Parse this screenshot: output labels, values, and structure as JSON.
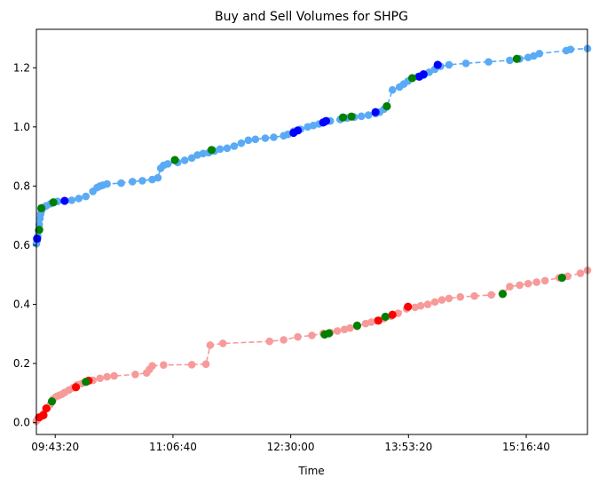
{
  "chart_data": {
    "type": "scatter",
    "title": "Buy and Sell Volumes for SHPG",
    "xlabel": "Time",
    "ylabel": "",
    "x_ticks": [
      "09:43:20",
      "11:06:40",
      "12:30:00",
      "13:53:20",
      "15:16:40"
    ],
    "y_ticks": [
      "0.0",
      "0.2",
      "0.4",
      "0.6",
      "0.8",
      "1.0",
      "1.2"
    ],
    "xlim": [
      "09:30:00",
      "16:00:00"
    ],
    "ylim": [
      -0.04,
      1.33
    ],
    "grid": false,
    "colors": {
      "buy_line": "#5aabf5",
      "sell_line": "#f79a9a",
      "buy_highlight": "#0000ff",
      "sell_highlight": "#ff0000",
      "marker_green": "#008000"
    },
    "series": [
      {
        "line_color": "#5aabf5",
        "points": [
          [
            "09:30:00",
            0.605
          ],
          [
            "09:30:30",
            0.615
          ],
          [
            "09:31:00",
            0.63
          ],
          [
            "09:31:30",
            0.648
          ],
          [
            "09:32:00",
            0.67
          ],
          [
            "09:32:30",
            0.69
          ],
          [
            "09:33:00",
            0.705
          ],
          [
            "09:33:30",
            0.715
          ],
          [
            "09:34:00",
            0.722
          ],
          [
            "09:35:00",
            0.728
          ],
          [
            "09:37:00",
            0.733
          ],
          [
            "09:40:00",
            0.74
          ],
          [
            "09:42:00",
            0.744
          ],
          [
            "09:45:00",
            0.748
          ],
          [
            "09:50:00",
            0.75
          ],
          [
            "09:55:00",
            0.752
          ],
          [
            "10:00:00",
            0.758
          ],
          [
            "10:05:00",
            0.765
          ],
          [
            "10:10:00",
            0.782
          ],
          [
            "10:13:00",
            0.795
          ],
          [
            "10:15:00",
            0.8
          ],
          [
            "10:17:00",
            0.803
          ],
          [
            "10:20:00",
            0.807
          ],
          [
            "10:30:00",
            0.81
          ],
          [
            "10:38:00",
            0.815
          ],
          [
            "10:45:00",
            0.818
          ],
          [
            "10:52:00",
            0.822
          ],
          [
            "10:56:00",
            0.828
          ],
          [
            "10:58:00",
            0.86
          ],
          [
            "11:00:00",
            0.87
          ],
          [
            "11:03:00",
            0.875
          ],
          [
            "11:10:00",
            0.88
          ],
          [
            "11:15:00",
            0.887
          ],
          [
            "11:20:00",
            0.895
          ],
          [
            "11:24:00",
            0.905
          ],
          [
            "11:28:00",
            0.91
          ],
          [
            "11:32:00",
            0.913
          ],
          [
            "11:36:00",
            0.918
          ],
          [
            "11:40:00",
            0.925
          ],
          [
            "11:45:00",
            0.928
          ],
          [
            "11:50:00",
            0.935
          ],
          [
            "11:55:00",
            0.945
          ],
          [
            "12:00:00",
            0.955
          ],
          [
            "12:05:00",
            0.958
          ],
          [
            "12:12:00",
            0.962
          ],
          [
            "12:18:00",
            0.965
          ],
          [
            "12:25:00",
            0.97
          ],
          [
            "12:28:00",
            0.975
          ],
          [
            "12:32:00",
            0.985
          ],
          [
            "12:37:00",
            0.992
          ],
          [
            "12:42:00",
            1.0
          ],
          [
            "12:46:00",
            1.005
          ],
          [
            "12:50:00",
            1.01
          ],
          [
            "12:53:00",
            1.015
          ],
          [
            "12:58:00",
            1.02
          ],
          [
            "13:05:00",
            1.025
          ],
          [
            "13:10:00",
            1.03
          ],
          [
            "13:15:00",
            1.033
          ],
          [
            "13:20:00",
            1.036
          ],
          [
            "13:25:00",
            1.04
          ],
          [
            "13:30:00",
            1.045
          ],
          [
            "13:33:00",
            1.05
          ],
          [
            "13:36:00",
            1.06
          ],
          [
            "13:38:00",
            1.068
          ],
          [
            "13:42:00",
            1.125
          ],
          [
            "13:47:00",
            1.135
          ],
          [
            "13:50:00",
            1.145
          ],
          [
            "13:53:00",
            1.155
          ],
          [
            "13:56:00",
            1.165
          ],
          [
            "14:00:00",
            1.17
          ],
          [
            "14:04:00",
            1.175
          ],
          [
            "14:08:00",
            1.185
          ],
          [
            "14:12:00",
            1.195
          ],
          [
            "14:16:00",
            1.205
          ],
          [
            "14:22:00",
            1.21
          ],
          [
            "14:34:00",
            1.215
          ],
          [
            "14:50:00",
            1.22
          ],
          [
            "15:05:00",
            1.225
          ],
          [
            "15:12:00",
            1.23
          ],
          [
            "15:18:00",
            1.235
          ],
          [
            "15:22:00",
            1.24
          ],
          [
            "15:26:00",
            1.248
          ],
          [
            "15:45:00",
            1.258
          ],
          [
            "15:48:00",
            1.262
          ],
          [
            "16:00:00",
            1.265
          ]
        ],
        "highlights_blue": [
          [
            "09:30:30",
            0.622
          ],
          [
            "09:50:00",
            0.75
          ],
          [
            "12:32:00",
            0.98
          ],
          [
            "12:35:00",
            0.988
          ],
          [
            "12:53:00",
            1.015
          ],
          [
            "12:55:00",
            1.02
          ],
          [
            "13:30:00",
            1.05
          ],
          [
            "14:01:00",
            1.17
          ],
          [
            "14:04:00",
            1.178
          ],
          [
            "14:14:00",
            1.21
          ]
        ],
        "highlights_green": [
          [
            "09:32:00",
            0.652
          ],
          [
            "09:33:30",
            0.725
          ],
          [
            "09:42:00",
            0.745
          ],
          [
            "11:08:00",
            0.888
          ],
          [
            "11:34:00",
            0.922
          ],
          [
            "13:07:00",
            1.032
          ],
          [
            "13:13:00",
            1.035
          ],
          [
            "13:38:00",
            1.07
          ],
          [
            "13:56:00",
            1.165
          ],
          [
            "15:10:00",
            1.23
          ]
        ]
      },
      {
        "line_color": "#f79a9a",
        "points": [
          [
            "09:30:00",
            0.005
          ],
          [
            "09:31:00",
            0.012
          ],
          [
            "09:33:00",
            0.02
          ],
          [
            "09:35:00",
            0.03
          ],
          [
            "09:38:00",
            0.05
          ],
          [
            "09:40:00",
            0.062
          ],
          [
            "09:42:00",
            0.08
          ],
          [
            "09:44:00",
            0.088
          ],
          [
            "09:46:00",
            0.092
          ],
          [
            "09:48:00",
            0.096
          ],
          [
            "09:50:00",
            0.102
          ],
          [
            "09:53:00",
            0.11
          ],
          [
            "09:56:00",
            0.118
          ],
          [
            "09:59:00",
            0.128
          ],
          [
            "10:02:00",
            0.132
          ],
          [
            "10:06:00",
            0.138
          ],
          [
            "10:10:00",
            0.143
          ],
          [
            "10:15:00",
            0.15
          ],
          [
            "10:20:00",
            0.155
          ],
          [
            "10:25:00",
            0.158
          ],
          [
            "10:40:00",
            0.163
          ],
          [
            "10:48:00",
            0.168
          ],
          [
            "10:50:00",
            0.18
          ],
          [
            "10:52:00",
            0.192
          ],
          [
            "11:00:00",
            0.195
          ],
          [
            "11:20:00",
            0.196
          ],
          [
            "11:30:00",
            0.198
          ],
          [
            "11:33:00",
            0.262
          ],
          [
            "11:42:00",
            0.268
          ],
          [
            "12:15:00",
            0.275
          ],
          [
            "12:25:00",
            0.28
          ],
          [
            "12:35:00",
            0.29
          ],
          [
            "12:45:00",
            0.295
          ],
          [
            "12:53:00",
            0.302
          ],
          [
            "12:58:00",
            0.305
          ],
          [
            "13:03:00",
            0.31
          ],
          [
            "13:08:00",
            0.315
          ],
          [
            "13:12:00",
            0.32
          ],
          [
            "13:17:00",
            0.325
          ],
          [
            "13:23:00",
            0.335
          ],
          [
            "13:27:00",
            0.34
          ],
          [
            "13:31:00",
            0.345
          ],
          [
            "13:36:00",
            0.352
          ],
          [
            "13:41:00",
            0.36
          ],
          [
            "13:46:00",
            0.37
          ],
          [
            "13:52:00",
            0.385
          ],
          [
            "13:58:00",
            0.39
          ],
          [
            "14:02:00",
            0.395
          ],
          [
            "14:07:00",
            0.4
          ],
          [
            "14:12:00",
            0.408
          ],
          [
            "14:17:00",
            0.415
          ],
          [
            "14:22:00",
            0.42
          ],
          [
            "14:30:00",
            0.425
          ],
          [
            "14:40:00",
            0.428
          ],
          [
            "14:52:00",
            0.432
          ],
          [
            "15:00:00",
            0.438
          ],
          [
            "15:05:00",
            0.46
          ],
          [
            "15:12:00",
            0.465
          ],
          [
            "15:18:00",
            0.47
          ],
          [
            "15:24:00",
            0.475
          ],
          [
            "15:30:00",
            0.48
          ],
          [
            "15:40:00",
            0.49
          ],
          [
            "15:46:00",
            0.495
          ],
          [
            "15:55:00",
            0.505
          ],
          [
            "16:00:00",
            0.515
          ]
        ],
        "highlights_red": [
          [
            "09:32:00",
            0.018
          ],
          [
            "09:35:00",
            0.025
          ],
          [
            "09:37:00",
            0.048
          ],
          [
            "09:58:00",
            0.12
          ],
          [
            "10:07:00",
            0.142
          ],
          [
            "13:32:00",
            0.345
          ],
          [
            "13:42:00",
            0.365
          ],
          [
            "13:53:00",
            0.392
          ]
        ],
        "highlights_green": [
          [
            "09:41:00",
            0.072
          ],
          [
            "10:05:00",
            0.138
          ],
          [
            "12:54:00",
            0.298
          ],
          [
            "12:57:00",
            0.302
          ],
          [
            "13:17:00",
            0.328
          ],
          [
            "13:37:00",
            0.358
          ],
          [
            "15:00:00",
            0.435
          ],
          [
            "15:42:00",
            0.49
          ]
        ]
      }
    ]
  }
}
